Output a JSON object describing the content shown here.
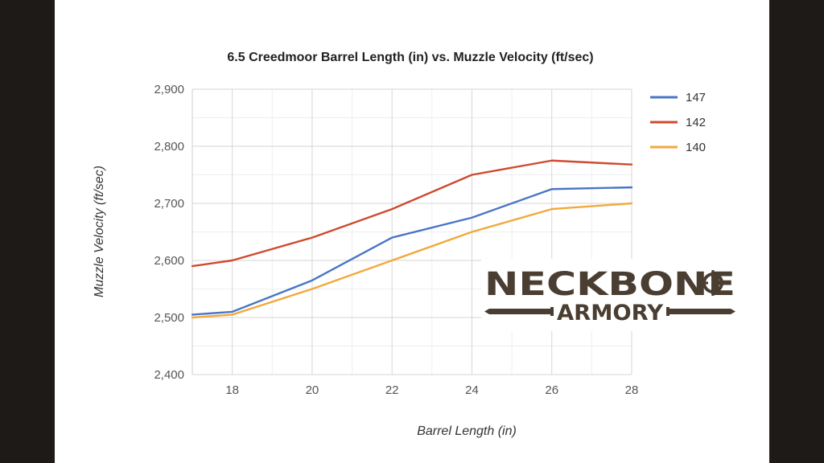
{
  "chart_data": {
    "type": "line",
    "title": "6.5 Creedmoor Barrel Length (in) vs. Muzzle Velocity (ft/sec)",
    "xlabel": "Barrel Length (in)",
    "ylabel": "Muzzle Velocity (ft/sec)",
    "x": [
      17,
      18,
      20,
      22,
      24,
      26,
      28
    ],
    "xlim": [
      17,
      28
    ],
    "ylim": [
      2400,
      2900
    ],
    "x_ticks": [
      18,
      20,
      22,
      24,
      26,
      28
    ],
    "y_ticks": [
      2400,
      2500,
      2600,
      2700,
      2800,
      2900
    ],
    "x_tick_labels": [
      "18",
      "20",
      "22",
      "24",
      "26",
      "28"
    ],
    "y_tick_labels": [
      "2,400",
      "2,500",
      "2,600",
      "2,700",
      "2,800",
      "2,900"
    ],
    "grid": true,
    "legend_position": "right",
    "series": [
      {
        "name": "147",
        "color": "#4a76c6",
        "values": [
          2505,
          2510,
          2565,
          2640,
          2675,
          2725,
          2728
        ]
      },
      {
        "name": "142",
        "color": "#cf4a30",
        "values": [
          2590,
          2600,
          2640,
          2690,
          2750,
          2775,
          2768
        ]
      },
      {
        "name": "140",
        "color": "#f2a93b",
        "values": [
          2500,
          2505,
          2550,
          2600,
          2650,
          2690,
          2700
        ]
      }
    ]
  },
  "logo": {
    "top_text": "NECKBONE",
    "bottom_text": "ARMORY",
    "color": "#4a3d31"
  }
}
